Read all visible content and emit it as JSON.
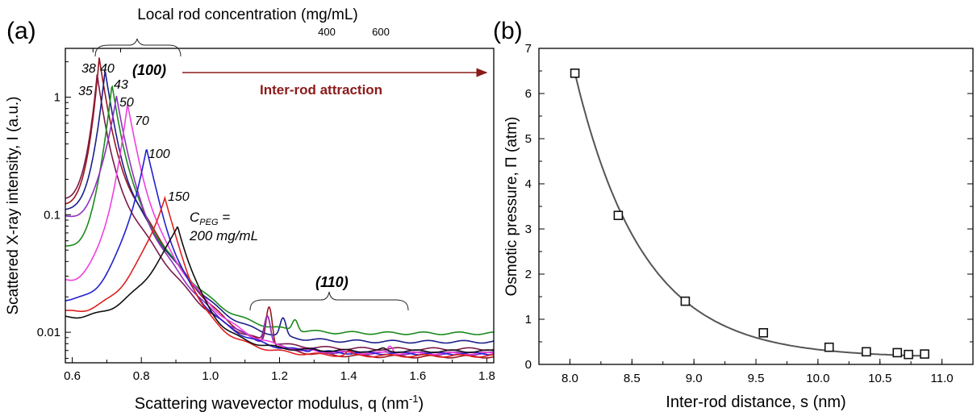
{
  "figure": {
    "panel_a_label": "(a)",
    "panel_b_label": "(b)"
  },
  "chart_data": [
    {
      "type": "line",
      "panel": "(a)",
      "xlabel": "Scattering wavevector modulus, q (nm",
      "xlabel_sup": "-1",
      "xlabel_close": ")",
      "ylabel": "Scattered X-ray intensity, I (a.u.)",
      "top_xlabel": "Local rod concentration (mg/mL)",
      "top_ticks": [
        "400",
        "600"
      ],
      "xlim": [
        0.58,
        1.82
      ],
      "ylim": [
        0.0055,
        2.6
      ],
      "yscale": "log",
      "xticks": [
        "0.6",
        "0.8",
        "1.0",
        "1.2",
        "1.4",
        "1.6",
        "1.8"
      ],
      "yticks": [
        "0.01",
        "0.1",
        "1"
      ],
      "peak_labels": {
        "p100": "(100)",
        "p110": "(110)"
      },
      "arrow_label": "Inter-rod attraction",
      "cpeg_label": {
        "main": "C",
        "sub": "PEG",
        "eq": " =",
        "line2": "200 mg/mL"
      },
      "series": [
        {
          "name": "35",
          "color": "#7a1a4a",
          "peak_q": 0.672,
          "peak_i": 1.6,
          "start_i": 0.14,
          "tail": 0.0072,
          "peak2_q": 1.165,
          "peak2_i": 0.0125
        },
        {
          "name": "38",
          "color": "#9b1520",
          "peak_q": 0.678,
          "peak_i": 2.2,
          "start_i": 0.125,
          "tail": 0.0062,
          "peak2_q": 1.17,
          "peak2_i": 0.014
        },
        {
          "name": "40",
          "color": "#1a1f8a",
          "peak_q": 0.695,
          "peak_i": 1.65,
          "start_i": 0.11,
          "tail": 0.0083,
          "peak2_q": 1.21,
          "peak2_i": 0.012
        },
        {
          "name": "43",
          "color": "#1b8a1b",
          "peak_q": 0.715,
          "peak_i": 1.28,
          "start_i": 0.053,
          "tail": 0.0098,
          "peak2_q": 1.245,
          "peak2_i": 0.0125
        },
        {
          "name": "50",
          "color": "#9030c0",
          "peak_q": 0.728,
          "peak_i": 1.05,
          "start_i": 0.095,
          "tail": 0.0066,
          "peak2_q": 1.165,
          "peak2_i": 0.0118
        },
        {
          "name": "70",
          "color": "#f040e0",
          "peak_q": 0.76,
          "peak_i": 0.85,
          "start_i": 0.028,
          "tail": 0.0066,
          "peak2_q": 1.52,
          "peak2_i": 0.0078
        },
        {
          "name": "100",
          "color": "#2020d0",
          "peak_q": 0.815,
          "peak_i": 0.36,
          "start_i": 0.019,
          "tail": 0.0066,
          "peak2_q": 1.3,
          "peak2_i": 0.0072
        },
        {
          "name": "150",
          "color": "#e02020",
          "peak_q": 0.868,
          "peak_i": 0.14,
          "start_i": 0.015,
          "tail": 0.0063,
          "peak2_q": 1.4,
          "peak2_i": 0.0068
        },
        {
          "name": "200",
          "color": "#101010",
          "peak_q": 0.905,
          "peak_i": 0.08,
          "start_i": 0.0135,
          "tail": 0.0069,
          "peak2_q": 1.5,
          "peak2_i": 0.0072
        }
      ]
    },
    {
      "type": "scatter",
      "panel": "(b)",
      "xlabel": "Inter-rod distance, s (nm)",
      "ylabel": "Osmotic pressure, Π (atm)",
      "xlim": [
        7.75,
        11.25
      ],
      "ylim": [
        0,
        7
      ],
      "xticks": [
        "8.0",
        "8.5",
        "9.0",
        "9.5",
        "10.0",
        "10.5",
        "11.0"
      ],
      "yticks": [
        "0",
        "1",
        "2",
        "3",
        "4",
        "5",
        "6",
        "7"
      ],
      "points": [
        {
          "x": 8.04,
          "y": 6.45
        },
        {
          "x": 8.39,
          "y": 3.3
        },
        {
          "x": 8.93,
          "y": 1.4
        },
        {
          "x": 9.56,
          "y": 0.7
        },
        {
          "x": 10.09,
          "y": 0.38
        },
        {
          "x": 10.39,
          "y": 0.28
        },
        {
          "x": 10.64,
          "y": 0.26
        },
        {
          "x": 10.73,
          "y": 0.22
        },
        {
          "x": 10.86,
          "y": 0.23
        }
      ],
      "fit": {
        "color": "#555555"
      }
    }
  ]
}
